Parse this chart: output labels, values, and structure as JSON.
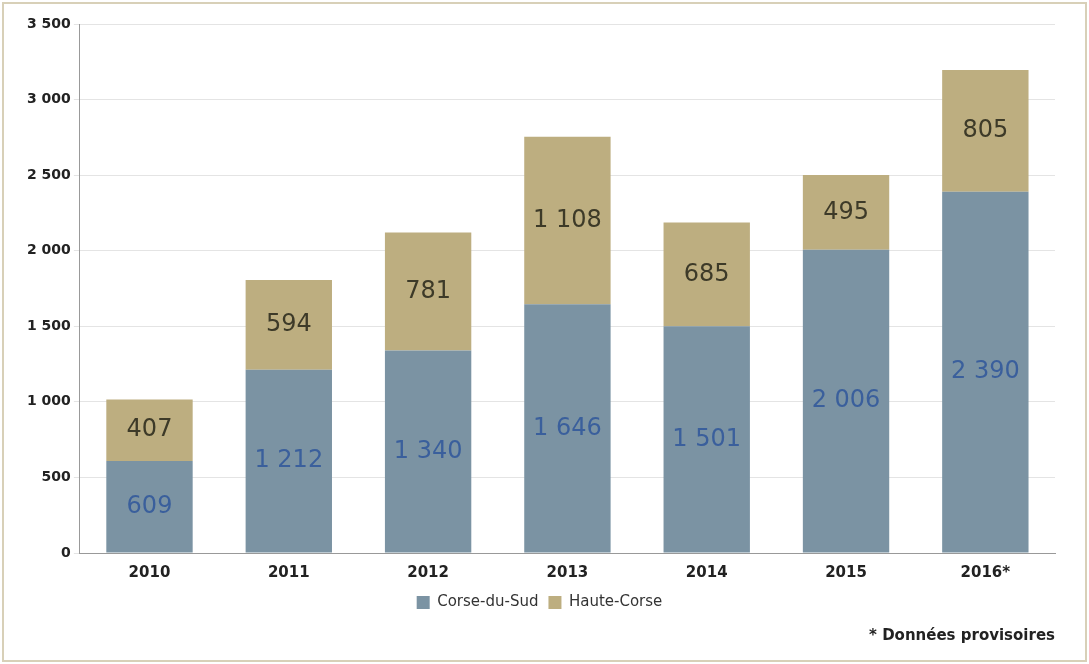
{
  "chart_data": {
    "type": "bar",
    "stacked": true,
    "categories": [
      "2010",
      "2011",
      "2012",
      "2013",
      "2014",
      "2015",
      "2016*"
    ],
    "series": [
      {
        "name": "Corse-du-Sud",
        "color": "#7b93a3",
        "values": [
          609,
          1212,
          1340,
          1646,
          1501,
          2006,
          2390
        ],
        "value_labels": [
          "609",
          "1 212",
          "1 340",
          "1 646",
          "1 501",
          "2 006",
          "2 390"
        ]
      },
      {
        "name": "Haute-Corse",
        "color": "#bdae80",
        "values": [
          407,
          594,
          781,
          1108,
          685,
          495,
          805
        ],
        "value_labels": [
          "407",
          "594",
          "781",
          "1 108",
          "685",
          "495",
          "805"
        ]
      }
    ],
    "ylim": [
      0,
      3500
    ],
    "yticks": [
      0,
      {
        "value": 500,
        "label": "500"
      },
      {
        "value": 1000,
        "label": "1 000"
      },
      {
        "value": 1500,
        "label": "1 500"
      },
      {
        "value": 2000,
        "label": "2 000"
      },
      {
        "value": 2500,
        "label": "2 500"
      },
      {
        "value": 3000,
        "label": "3 000"
      },
      {
        "value": 3500,
        "label": "3 500"
      }
    ],
    "grid": "y",
    "legend": "bottom",
    "annotations": [
      "* Données provisoires"
    ]
  }
}
